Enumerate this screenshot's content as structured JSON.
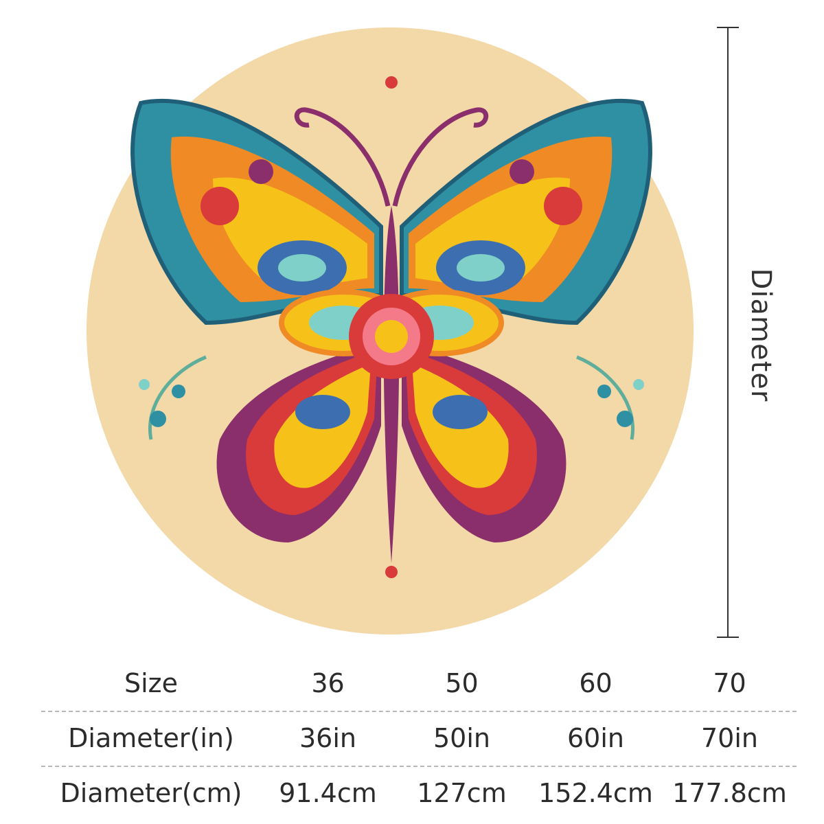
{
  "dimension_label": "Diameter",
  "colors": {
    "background": "#ffffff",
    "disc": "#f3d8a8",
    "wing_teal": "#2f8fa3",
    "wing_orange": "#f08a24",
    "wing_yellow": "#f6c21a",
    "wing_red": "#d93a3a",
    "wing_purple": "#8a2f6b",
    "wing_blue": "#3d6fb0"
  },
  "table": {
    "rows": [
      {
        "label": "Size",
        "values": [
          "36",
          "50",
          "60",
          "70"
        ]
      },
      {
        "label": "Diameter(in)",
        "values": [
          "36in",
          "50in",
          "60in",
          "70in"
        ]
      },
      {
        "label": "Diameter(cm)",
        "values": [
          "91.4cm",
          "127cm",
          "152.4cm",
          "177.8cm"
        ]
      }
    ]
  }
}
